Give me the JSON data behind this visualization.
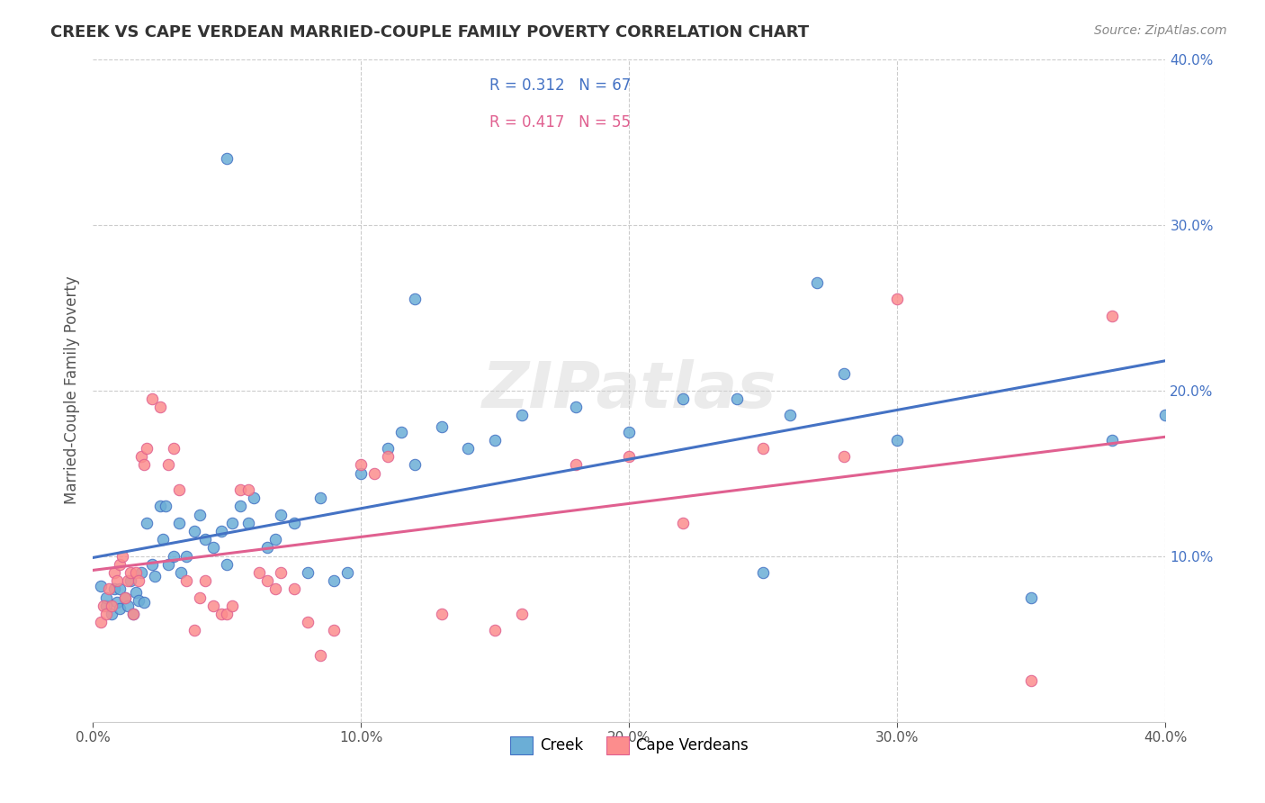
{
  "title": "CREEK VS CAPE VERDEAN MARRIED-COUPLE FAMILY POVERTY CORRELATION CHART",
  "source": "Source: ZipAtlas.com",
  "ylabel": "Married-Couple Family Poverty",
  "xlim": [
    0.0,
    0.4
  ],
  "ylim": [
    0.0,
    0.4
  ],
  "xtick_labels": [
    "0.0%",
    "10.0%",
    "20.0%",
    "30.0%",
    "40.0%"
  ],
  "xtick_vals": [
    0.0,
    0.1,
    0.2,
    0.3,
    0.4
  ],
  "ytick_labels": [
    "10.0%",
    "20.0%",
    "30.0%",
    "40.0%"
  ],
  "ytick_vals": [
    0.1,
    0.2,
    0.3,
    0.4
  ],
  "creek_color": "#6baed6",
  "cape_color": "#fc8d8d",
  "creek_line_color": "#4472c4",
  "cape_line_color": "#e06090",
  "legend_creek_R": "0.312",
  "legend_creek_N": "67",
  "legend_cape_R": "0.417",
  "legend_cape_N": "55",
  "watermark": "ZIPatlas",
  "background_color": "#ffffff",
  "grid_color": "#cccccc",
  "creek_points": [
    [
      0.003,
      0.082
    ],
    [
      0.005,
      0.07
    ],
    [
      0.005,
      0.075
    ],
    [
      0.007,
      0.065
    ],
    [
      0.008,
      0.08
    ],
    [
      0.009,
      0.072
    ],
    [
      0.01,
      0.068
    ],
    [
      0.01,
      0.08
    ],
    [
      0.012,
      0.075
    ],
    [
      0.013,
      0.07
    ],
    [
      0.014,
      0.085
    ],
    [
      0.015,
      0.065
    ],
    [
      0.016,
      0.078
    ],
    [
      0.017,
      0.073
    ],
    [
      0.018,
      0.09
    ],
    [
      0.019,
      0.072
    ],
    [
      0.02,
      0.12
    ],
    [
      0.022,
      0.095
    ],
    [
      0.023,
      0.088
    ],
    [
      0.025,
      0.13
    ],
    [
      0.026,
      0.11
    ],
    [
      0.027,
      0.13
    ],
    [
      0.028,
      0.095
    ],
    [
      0.03,
      0.1
    ],
    [
      0.032,
      0.12
    ],
    [
      0.033,
      0.09
    ],
    [
      0.035,
      0.1
    ],
    [
      0.038,
      0.115
    ],
    [
      0.04,
      0.125
    ],
    [
      0.042,
      0.11
    ],
    [
      0.045,
      0.105
    ],
    [
      0.048,
      0.115
    ],
    [
      0.05,
      0.095
    ],
    [
      0.052,
      0.12
    ],
    [
      0.055,
      0.13
    ],
    [
      0.058,
      0.12
    ],
    [
      0.06,
      0.135
    ],
    [
      0.065,
      0.105
    ],
    [
      0.068,
      0.11
    ],
    [
      0.07,
      0.125
    ],
    [
      0.075,
      0.12
    ],
    [
      0.08,
      0.09
    ],
    [
      0.085,
      0.135
    ],
    [
      0.09,
      0.085
    ],
    [
      0.095,
      0.09
    ],
    [
      0.1,
      0.15
    ],
    [
      0.11,
      0.165
    ],
    [
      0.115,
      0.175
    ],
    [
      0.12,
      0.155
    ],
    [
      0.13,
      0.178
    ],
    [
      0.14,
      0.165
    ],
    [
      0.15,
      0.17
    ],
    [
      0.16,
      0.185
    ],
    [
      0.18,
      0.19
    ],
    [
      0.2,
      0.175
    ],
    [
      0.22,
      0.195
    ],
    [
      0.24,
      0.195
    ],
    [
      0.25,
      0.09
    ],
    [
      0.26,
      0.185
    ],
    [
      0.27,
      0.265
    ],
    [
      0.28,
      0.21
    ],
    [
      0.3,
      0.17
    ],
    [
      0.35,
      0.075
    ],
    [
      0.38,
      0.17
    ],
    [
      0.05,
      0.34
    ],
    [
      0.12,
      0.255
    ],
    [
      0.4,
      0.185
    ]
  ],
  "cape_points": [
    [
      0.003,
      0.06
    ],
    [
      0.004,
      0.07
    ],
    [
      0.005,
      0.065
    ],
    [
      0.006,
      0.08
    ],
    [
      0.007,
      0.07
    ],
    [
      0.008,
      0.09
    ],
    [
      0.009,
      0.085
    ],
    [
      0.01,
      0.095
    ],
    [
      0.011,
      0.1
    ],
    [
      0.012,
      0.075
    ],
    [
      0.013,
      0.085
    ],
    [
      0.014,
      0.09
    ],
    [
      0.015,
      0.065
    ],
    [
      0.016,
      0.09
    ],
    [
      0.017,
      0.085
    ],
    [
      0.018,
      0.16
    ],
    [
      0.019,
      0.155
    ],
    [
      0.02,
      0.165
    ],
    [
      0.022,
      0.195
    ],
    [
      0.025,
      0.19
    ],
    [
      0.028,
      0.155
    ],
    [
      0.03,
      0.165
    ],
    [
      0.032,
      0.14
    ],
    [
      0.035,
      0.085
    ],
    [
      0.038,
      0.055
    ],
    [
      0.04,
      0.075
    ],
    [
      0.042,
      0.085
    ],
    [
      0.045,
      0.07
    ],
    [
      0.048,
      0.065
    ],
    [
      0.05,
      0.065
    ],
    [
      0.052,
      0.07
    ],
    [
      0.055,
      0.14
    ],
    [
      0.058,
      0.14
    ],
    [
      0.062,
      0.09
    ],
    [
      0.065,
      0.085
    ],
    [
      0.068,
      0.08
    ],
    [
      0.07,
      0.09
    ],
    [
      0.075,
      0.08
    ],
    [
      0.08,
      0.06
    ],
    [
      0.085,
      0.04
    ],
    [
      0.09,
      0.055
    ],
    [
      0.1,
      0.155
    ],
    [
      0.105,
      0.15
    ],
    [
      0.11,
      0.16
    ],
    [
      0.13,
      0.065
    ],
    [
      0.15,
      0.055
    ],
    [
      0.16,
      0.065
    ],
    [
      0.18,
      0.155
    ],
    [
      0.2,
      0.16
    ],
    [
      0.22,
      0.12
    ],
    [
      0.25,
      0.165
    ],
    [
      0.28,
      0.16
    ],
    [
      0.3,
      0.255
    ],
    [
      0.35,
      0.025
    ],
    [
      0.38,
      0.245
    ]
  ]
}
